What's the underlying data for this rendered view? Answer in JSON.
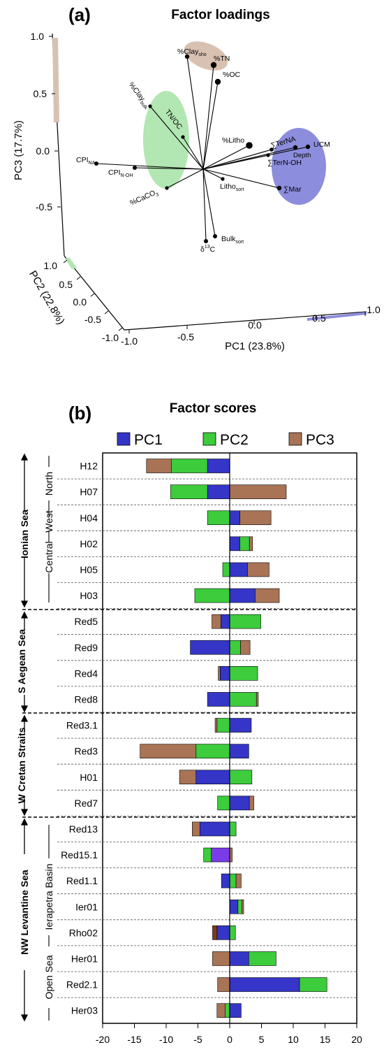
{
  "panel_a": {
    "label": "(a)",
    "title": "Factor  loadings",
    "pc1_label": "PC1 (23.8%)",
    "pc2_label": "PC2 (22.8%)",
    "pc3_label": "PC3 (17.7%)",
    "pc3_ticks": [
      "1.0",
      "0.5",
      "0.0",
      "-0.5"
    ],
    "pc2_ticks": [
      "1.0",
      "0.5",
      "0.0",
      "-0.5",
      "-1.0"
    ],
    "pc1_ticks": [
      "-1.0",
      "-0.5",
      "0.0",
      "0.5",
      "1.0"
    ],
    "variables": {
      "clay_sho": {
        "main": "%Clay",
        "sub": "sho"
      },
      "tn": {
        "main": "%TN"
      },
      "oc": {
        "main": "%OC"
      },
      "clay_bulk": {
        "main": "%Clay",
        "sub": "bulk"
      },
      "tnoc": {
        "main": "TN/OC"
      },
      "litho": {
        "main": "%Litho"
      },
      "ternalk": {
        "main": "∑TerNA"
      },
      "ucm": {
        "main": "UCM"
      },
      "depth": {
        "main": "Depth"
      },
      "ternoh": {
        "main": "∑TerN-OH"
      },
      "mar": {
        "main": "∑Mar"
      },
      "cpi_na": {
        "main": "CPI",
        "sub": "NA"
      },
      "cpi_noh": {
        "main": "CPI",
        "sub": "N-OH"
      },
      "caco3": {
        "main": "%CaCO",
        "sub": "3"
      },
      "litho_sort": {
        "main": "Litho",
        "sub": "sort"
      },
      "bulk_sort": {
        "main": "Bulk",
        "sub": "sort"
      },
      "d13c": {
        "main": "δ",
        "sup": "13",
        "tail": "C"
      }
    },
    "colors": {
      "pc1": "#8c8ddd",
      "pc2": "#b2e6b2",
      "pc3": "#d9c1b2"
    }
  },
  "panel_b": {
    "label": "(b)",
    "title": "Factor scores",
    "legend": [
      "PC1",
      "PC2",
      "PC3"
    ],
    "colors": {
      "pc1": "#3535c8",
      "pc2": "#3ccc3c",
      "pc3": "#a87455",
      "red15_pc1": "#7a3ce6",
      "rho02_pc3": "#7a3d22"
    },
    "x_ticks": [
      "-20",
      "-15",
      "-10",
      "-5",
      "0",
      "5",
      "10",
      "15",
      "20"
    ],
    "groups": [
      {
        "name": "Ionian Sea",
        "subs": [
          "North",
          "West",
          "Central"
        ]
      },
      {
        "name": "S Aegean Sea",
        "subs": []
      },
      {
        "name": "W Cretan Straits",
        "subs": []
      },
      {
        "name": "NW Levantine Sea",
        "subs": [
          "Ierapetra Basin",
          "Open Sea"
        ]
      }
    ]
  },
  "chart_data": {
    "type": "bar",
    "stacked": true,
    "orientation": "horizontal",
    "title": "Factor scores",
    "xlim": [
      -20,
      20
    ],
    "categories": [
      "H12",
      "H07",
      "H04",
      "H02",
      "H05",
      "H03",
      "Red5",
      "Red9",
      "Red4",
      "Red8",
      "Red3.1",
      "Red3",
      "H01",
      "Red7",
      "Red13",
      "Red15.1",
      "Red1.1",
      "Ier01",
      "Rho02",
      "Her01",
      "Red2.1",
      "Her03"
    ],
    "series": [
      {
        "name": "PC1",
        "values": [
          -3.5,
          -3.5,
          1.6,
          1.6,
          2.8,
          4.0,
          -1.4,
          -6.2,
          -1.5,
          -3.5,
          3.4,
          3.0,
          -5.3,
          3.1,
          -4.7,
          -2.9,
          -1.3,
          1.3,
          -2.0,
          3.0,
          11.0,
          1.8
        ]
      },
      {
        "name": "PC2",
        "values": [
          -5.7,
          -5.8,
          -3.5,
          1.5,
          -1.1,
          -5.5,
          4.9,
          1.7,
          4.4,
          4.2,
          -2.0,
          -5.3,
          3.5,
          -1.9,
          1.0,
          -1.2,
          1.0,
          0.6,
          0.9,
          4.3,
          4.3,
          -0.7
        ]
      },
      {
        "name": "PC3",
        "values": [
          -3.9,
          8.9,
          4.9,
          0.5,
          3.4,
          3.8,
          -1.4,
          1.5,
          -0.3,
          0.3,
          -0.3,
          -8.8,
          -2.6,
          0.7,
          -1.2,
          0.4,
          0.8,
          0.3,
          -0.7,
          -2.7,
          -1.9,
          -1.3
        ]
      }
    ]
  }
}
